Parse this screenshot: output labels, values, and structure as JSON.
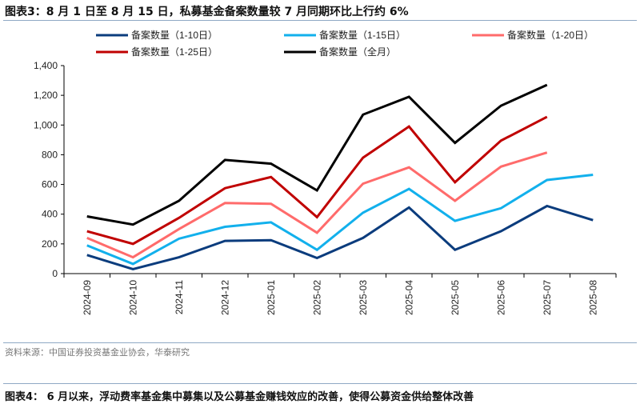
{
  "header": {
    "title": "图表3：8 月 1 日至 8 月 15 日，私募基金备案数量较 7 月同期环比上行约 6%"
  },
  "footer": {
    "source": "资料来源：中国证券投资基金业协会，华泰研究",
    "next_caption": "图表4： 6 月以来，浮动费率基金集中募集以及公募基金赚钱效应的改善，使得公募资金供给整体改善"
  },
  "chart_data": {
    "type": "line",
    "categories": [
      "2024-09",
      "2024-10",
      "2024-11",
      "2024-12",
      "2025-01",
      "2025-02",
      "2025-03",
      "2025-04",
      "2025-05",
      "2025-06",
      "2025-07",
      "2025-08"
    ],
    "ylim": [
      0,
      1400
    ],
    "yticks": [
      "0",
      "200",
      "400",
      "600",
      "800",
      "1,000",
      "1,200",
      "1,400"
    ],
    "legend": "top",
    "grid": false,
    "series": [
      {
        "name": "备案数量（1-10日）",
        "color": "#0b3c7d",
        "values": [
          125,
          30,
          110,
          220,
          225,
          105,
          240,
          445,
          160,
          285,
          455,
          360
        ]
      },
      {
        "name": "备案数量（1-15日）",
        "color": "#12b0ec",
        "values": [
          190,
          65,
          235,
          315,
          345,
          160,
          410,
          570,
          355,
          440,
          630,
          665
        ]
      },
      {
        "name": "备案数量（1-20日）",
        "color": "#ff6b6b",
        "values": [
          240,
          110,
          300,
          475,
          470,
          275,
          605,
          715,
          490,
          720,
          815,
          null
        ]
      },
      {
        "name": "备案数量（1-25日）",
        "color": "#c00000",
        "values": [
          285,
          200,
          375,
          575,
          650,
          380,
          780,
          990,
          615,
          895,
          1055,
          null
        ]
      },
      {
        "name": "备案数量（全月）",
        "color": "#000000",
        "values": [
          385,
          330,
          490,
          765,
          740,
          560,
          1070,
          1190,
          880,
          1130,
          1270,
          null
        ]
      }
    ]
  }
}
